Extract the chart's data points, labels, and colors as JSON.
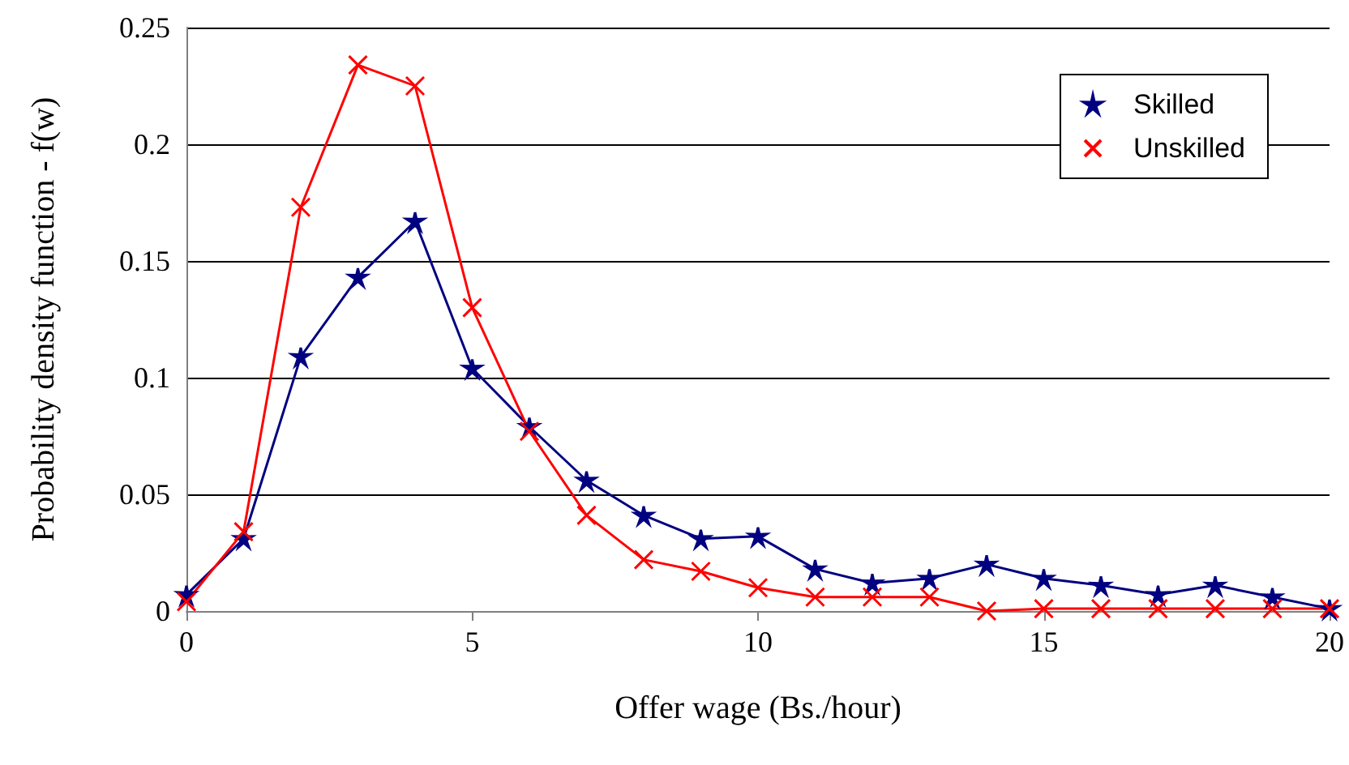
{
  "chart_data": {
    "type": "line",
    "xlabel": "Offer wage (Bs./hour)",
    "ylabel": "Probability density function - f(w)",
    "x": [
      0,
      1,
      2,
      3,
      4,
      5,
      6,
      7,
      8,
      9,
      10,
      11,
      12,
      13,
      14,
      15,
      16,
      17,
      18,
      19,
      20
    ],
    "series": [
      {
        "name": "Skilled",
        "color": "#000080",
        "marker": "star",
        "values": [
          0.007,
          0.031,
          0.109,
          0.143,
          0.167,
          0.104,
          0.079,
          0.056,
          0.041,
          0.031,
          0.032,
          0.018,
          0.012,
          0.014,
          0.02,
          0.014,
          0.011,
          0.007,
          0.011,
          0.006,
          0.001
        ]
      },
      {
        "name": "Unskilled",
        "color": "#ff0000",
        "marker": "cross",
        "values": [
          0.004,
          0.034,
          0.173,
          0.234,
          0.225,
          0.13,
          0.077,
          0.041,
          0.022,
          0.017,
          0.01,
          0.006,
          0.006,
          0.006,
          0.0,
          0.001,
          0.001,
          0.001,
          0.001,
          0.001,
          0.001
        ]
      }
    ],
    "xlim": [
      0,
      20
    ],
    "xticks": [
      0,
      5,
      10,
      15,
      20
    ],
    "ylim": [
      0,
      0.25
    ],
    "yticks": [
      0,
      0.05,
      0.1,
      0.15,
      0.2,
      0.25
    ],
    "grid": "y",
    "legend": "top right",
    "line_style": "solid"
  }
}
